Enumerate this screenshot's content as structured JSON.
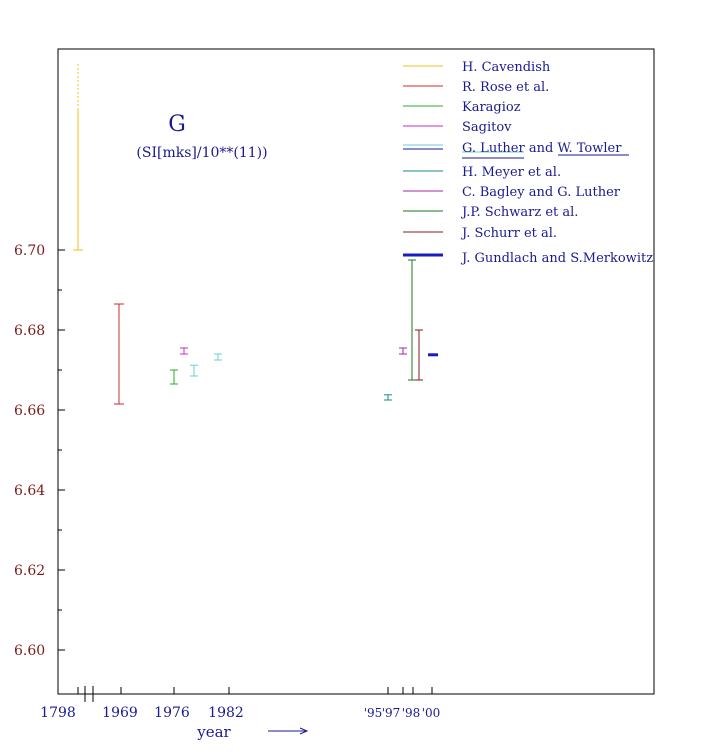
{
  "chart_data": {
    "type": "errorbar",
    "title": "G",
    "subtitle": "(SI[mks]/10**(11))",
    "xlabel": "year",
    "ylabel": "",
    "ylim": [
      6.588,
      6.74
    ],
    "y_ticks": [
      "6.60",
      "6.62",
      "6.64",
      "6.66",
      "6.68",
      "6.70"
    ],
    "x_ticks": [
      "1798",
      "1969",
      "1976",
      "1982",
      "'95",
      "'97",
      "'98",
      "'00"
    ],
    "grid": false,
    "legend_position": "top-right",
    "series": [
      {
        "name": "H. Cavendish",
        "color": "#f2c21a",
        "year": "1798",
        "low": 6.7,
        "high": 6.7465,
        "dotted_above": 6.735
      },
      {
        "name": "R. Rose et al.",
        "color": "#cc2a2a",
        "year": "1969",
        "low": 6.6615,
        "high": 6.6865
      },
      {
        "name": "Karagioz",
        "color": "#2ea82e",
        "year": "1976",
        "low": 6.6665,
        "high": 6.67
      },
      {
        "name": "Sagitov",
        "color": "#c42ec4",
        "year": "1977",
        "low": 6.674,
        "high": 6.6755
      },
      {
        "name": "G. Luther and W. Towler",
        "color": "#6ad1d1",
        "color2": "#1a1a90",
        "year": "1982",
        "low": 6.6725,
        "high": 6.674
      },
      {
        "name": "H. Meyer et al.",
        "color": "#1a8a8a",
        "year": "'95",
        "low": 6.6625,
        "high": 6.6638
      },
      {
        "name": "C. Bagley and G. Luther",
        "color": "#a02aa8",
        "year": "'97",
        "low": 6.674,
        "high": 6.6755
      },
      {
        "name": "J.P. Schwarz et al.",
        "color": "#1a7a1a",
        "year": "'98",
        "low": 6.6675,
        "high": 6.6975
      },
      {
        "name": "J. Schurr et al.",
        "color": "#8a1a1a",
        "year": "'98",
        "low": 6.6675,
        "high": 6.68
      },
      {
        "name": "J. Gundlach and S.Merkowitz",
        "color": "#1a1ac8",
        "year": "'00",
        "low": 6.6738,
        "high": 6.674
      }
    ]
  }
}
